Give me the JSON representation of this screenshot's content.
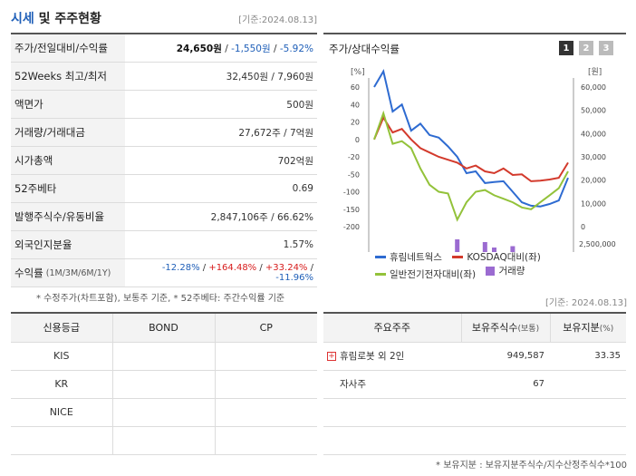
{
  "header": {
    "title_a": "시세",
    "title_b": " 및 주주현황",
    "basedate": "[기준:2024.08.13]"
  },
  "info": {
    "rows": [
      {
        "label": "주가/전일대비/수익률"
      },
      {
        "label": "52Weeks 최고/최저",
        "value": "32,450원 / 7,960원"
      },
      {
        "label": "액면가",
        "value": "500원"
      },
      {
        "label": "거래량/거래대금",
        "value": "27,672주 / 7억원"
      },
      {
        "label": "시가총액",
        "value": "702억원"
      },
      {
        "label": "52주베타",
        "value": "0.69"
      },
      {
        "label": "발행주식수/유동비율",
        "value": "2,847,106주 / 66.62%"
      },
      {
        "label": "외국인지분율",
        "value": "1.57%"
      }
    ],
    "price": "24,650원",
    "change": "-1,550원",
    "rate": "-5.92%",
    "return_label": "수익률",
    "return_periods": "(1M/3M/6M/1Y)",
    "returns": [
      "-12.28%",
      "+164.48%",
      "+33.24%",
      "-11.96%"
    ]
  },
  "note1": "* 수정주가(차트포함), 보통주 기준, * 52주베타: 주간수익률 기준",
  "note2": "[기준: 2024.08.13]",
  "chart_box": {
    "title": "주가/상대수익률",
    "pages": [
      "1",
      "2",
      "3"
    ]
  },
  "chart_data": {
    "type": "line",
    "left_unit": "[%]",
    "right_unit": "[원]",
    "left_ticks": [
      60,
      40,
      20,
      0,
      -20,
      -50,
      -100,
      -150,
      -200
    ],
    "right_ticks": [
      "60,000",
      "50,000",
      "40,000",
      "30,000",
      "20,000",
      "10,000",
      "0"
    ],
    "volume_tick_labels": [
      "2,500,000",
      "0"
    ],
    "x_labels": [
      "2022/08/31",
      "2023/06/30",
      "2024/04/30"
    ],
    "series": [
      {
        "name": "휴림네트웍스",
        "color": "#2e6bd1",
        "values": [
          60,
          78,
          32,
          40,
          10,
          18,
          5,
          2,
          -8,
          -20,
          -48,
          -45,
          -75,
          -72,
          -70,
          -100,
          -130,
          -140,
          -142,
          -135,
          -125,
          -60
        ]
      },
      {
        "name": "KOSDAQ대비(좌)",
        "color": "#d33a2c",
        "values": [
          0,
          25,
          8,
          12,
          0,
          -10,
          -15,
          -20,
          -25,
          -30,
          -40,
          -35,
          -45,
          -48,
          -40,
          -52,
          -50,
          -70,
          -68,
          -65,
          -60,
          -30
        ]
      },
      {
        "name": "일반전기전자대비(좌)",
        "color": "#93c23a",
        "values": [
          0,
          30,
          -5,
          -2,
          -10,
          -40,
          -80,
          -100,
          -105,
          -180,
          -130,
          -100,
          -95,
          -110,
          -120,
          -130,
          -145,
          -150,
          -130,
          -110,
          -90,
          -45
        ]
      }
    ],
    "volume": {
      "name": "거래량",
      "color": "#9b6bd1",
      "values": [
        0.15,
        0.35,
        0.05,
        0.5,
        0.1,
        0.2,
        0.15,
        0.25,
        0.3,
        1.0,
        0.1,
        0.1,
        0.9,
        0.7,
        0.1,
        0.75,
        0.1,
        0.2,
        0.05,
        0.02,
        0.02,
        0.02
      ]
    }
  },
  "credit": {
    "headers": [
      "신용등급",
      "BOND",
      "CP"
    ],
    "rows": [
      [
        "KIS",
        "",
        ""
      ],
      [
        "KR",
        "",
        ""
      ],
      [
        "NICE",
        "",
        ""
      ],
      [
        "",
        "",
        ""
      ]
    ]
  },
  "holders": {
    "h1": "주요주주",
    "h2": "보유주식수",
    "h2u": "(보통)",
    "h3": "보유지분",
    "h3u": "(%)",
    "rows": [
      {
        "name": "휴림로봇 외 2인",
        "shares": "949,587",
        "pct": "33.35",
        "expandable": true
      },
      {
        "name": "자사주",
        "shares": "67",
        "pct": "",
        "expandable": false
      },
      {
        "name": "",
        "shares": "",
        "pct": ""
      },
      {
        "name": "",
        "shares": "",
        "pct": ""
      }
    ]
  },
  "note3": "* 보유지분 : 보유지분주식수/지수산정주식수*100"
}
